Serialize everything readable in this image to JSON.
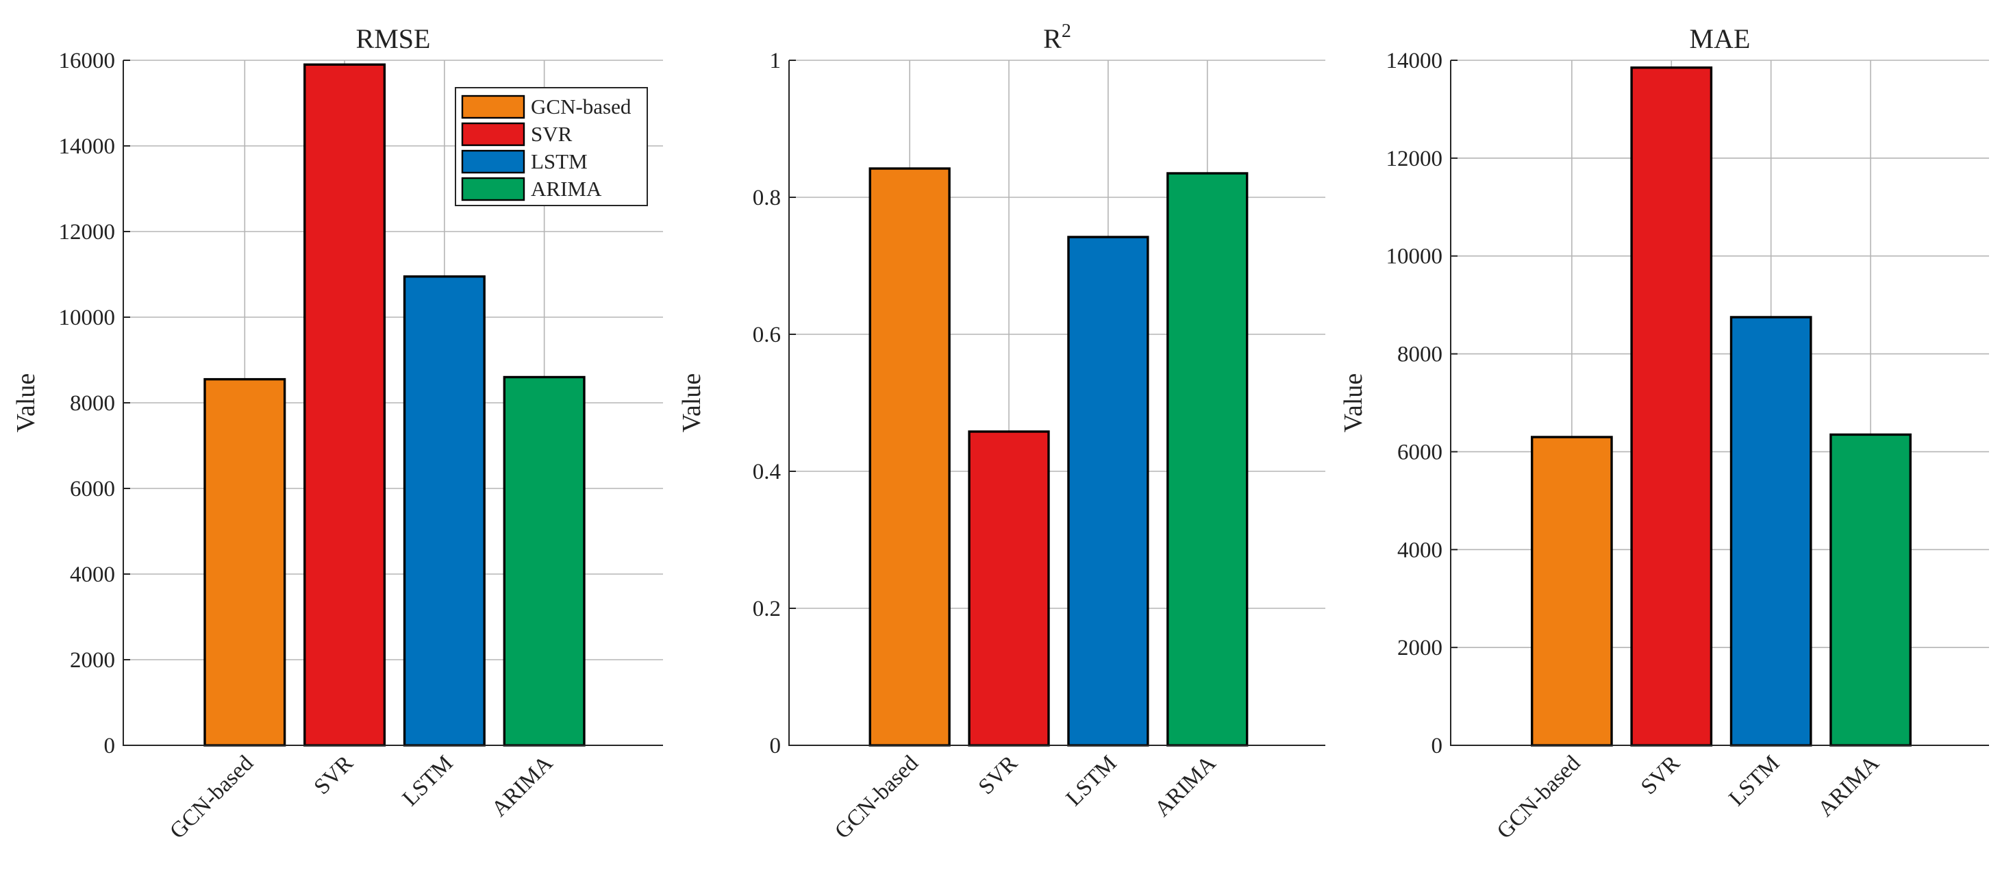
{
  "series_colors": {
    "GCN-based": "#F07F12",
    "SVR": "#E41A1C",
    "LSTM": "#0072BD",
    "ARIMA": "#00A05A"
  },
  "chart_data": [
    {
      "type": "bar",
      "title": "RMSE",
      "title_sup": "",
      "ylabel": "Value",
      "xlabel": "",
      "categories": [
        "GCN-based",
        "SVR",
        "LSTM",
        "ARIMA"
      ],
      "values": [
        8550,
        15900,
        10950,
        8600
      ],
      "ylim": [
        0,
        16000
      ],
      "yticks": [
        0,
        2000,
        4000,
        6000,
        8000,
        10000,
        12000,
        14000,
        16000
      ],
      "ytick_labels": [
        "0",
        "2000",
        "4000",
        "6000",
        "8000",
        "10000",
        "12000",
        "14000",
        "16000"
      ],
      "grid": true,
      "legend": {
        "position": "top-right",
        "entries": [
          "GCN-based",
          "SVR",
          "LSTM",
          "ARIMA"
        ]
      }
    },
    {
      "type": "bar",
      "title": "R",
      "title_sup": "2",
      "ylabel": "Value",
      "xlabel": "",
      "categories": [
        "GCN-based",
        "SVR",
        "LSTM",
        "ARIMA"
      ],
      "values": [
        0.842,
        0.458,
        0.742,
        0.835
      ],
      "ylim": [
        0,
        1
      ],
      "yticks": [
        0,
        0.2,
        0.4,
        0.6,
        0.8,
        1
      ],
      "ytick_labels": [
        "0",
        "0.2",
        "0.4",
        "0.6",
        "0.8",
        "1"
      ],
      "grid": true
    },
    {
      "type": "bar",
      "title": "MAE",
      "title_sup": "",
      "ylabel": "Value",
      "xlabel": "",
      "categories": [
        "GCN-based",
        "SVR",
        "LSTM",
        "ARIMA"
      ],
      "values": [
        6300,
        13850,
        8750,
        6350
      ],
      "ylim": [
        0,
        14000
      ],
      "yticks": [
        0,
        2000,
        4000,
        6000,
        8000,
        10000,
        12000,
        14000
      ],
      "ytick_labels": [
        "0",
        "2000",
        "4000",
        "6000",
        "8000",
        "10000",
        "12000",
        "14000"
      ],
      "grid": true
    }
  ]
}
